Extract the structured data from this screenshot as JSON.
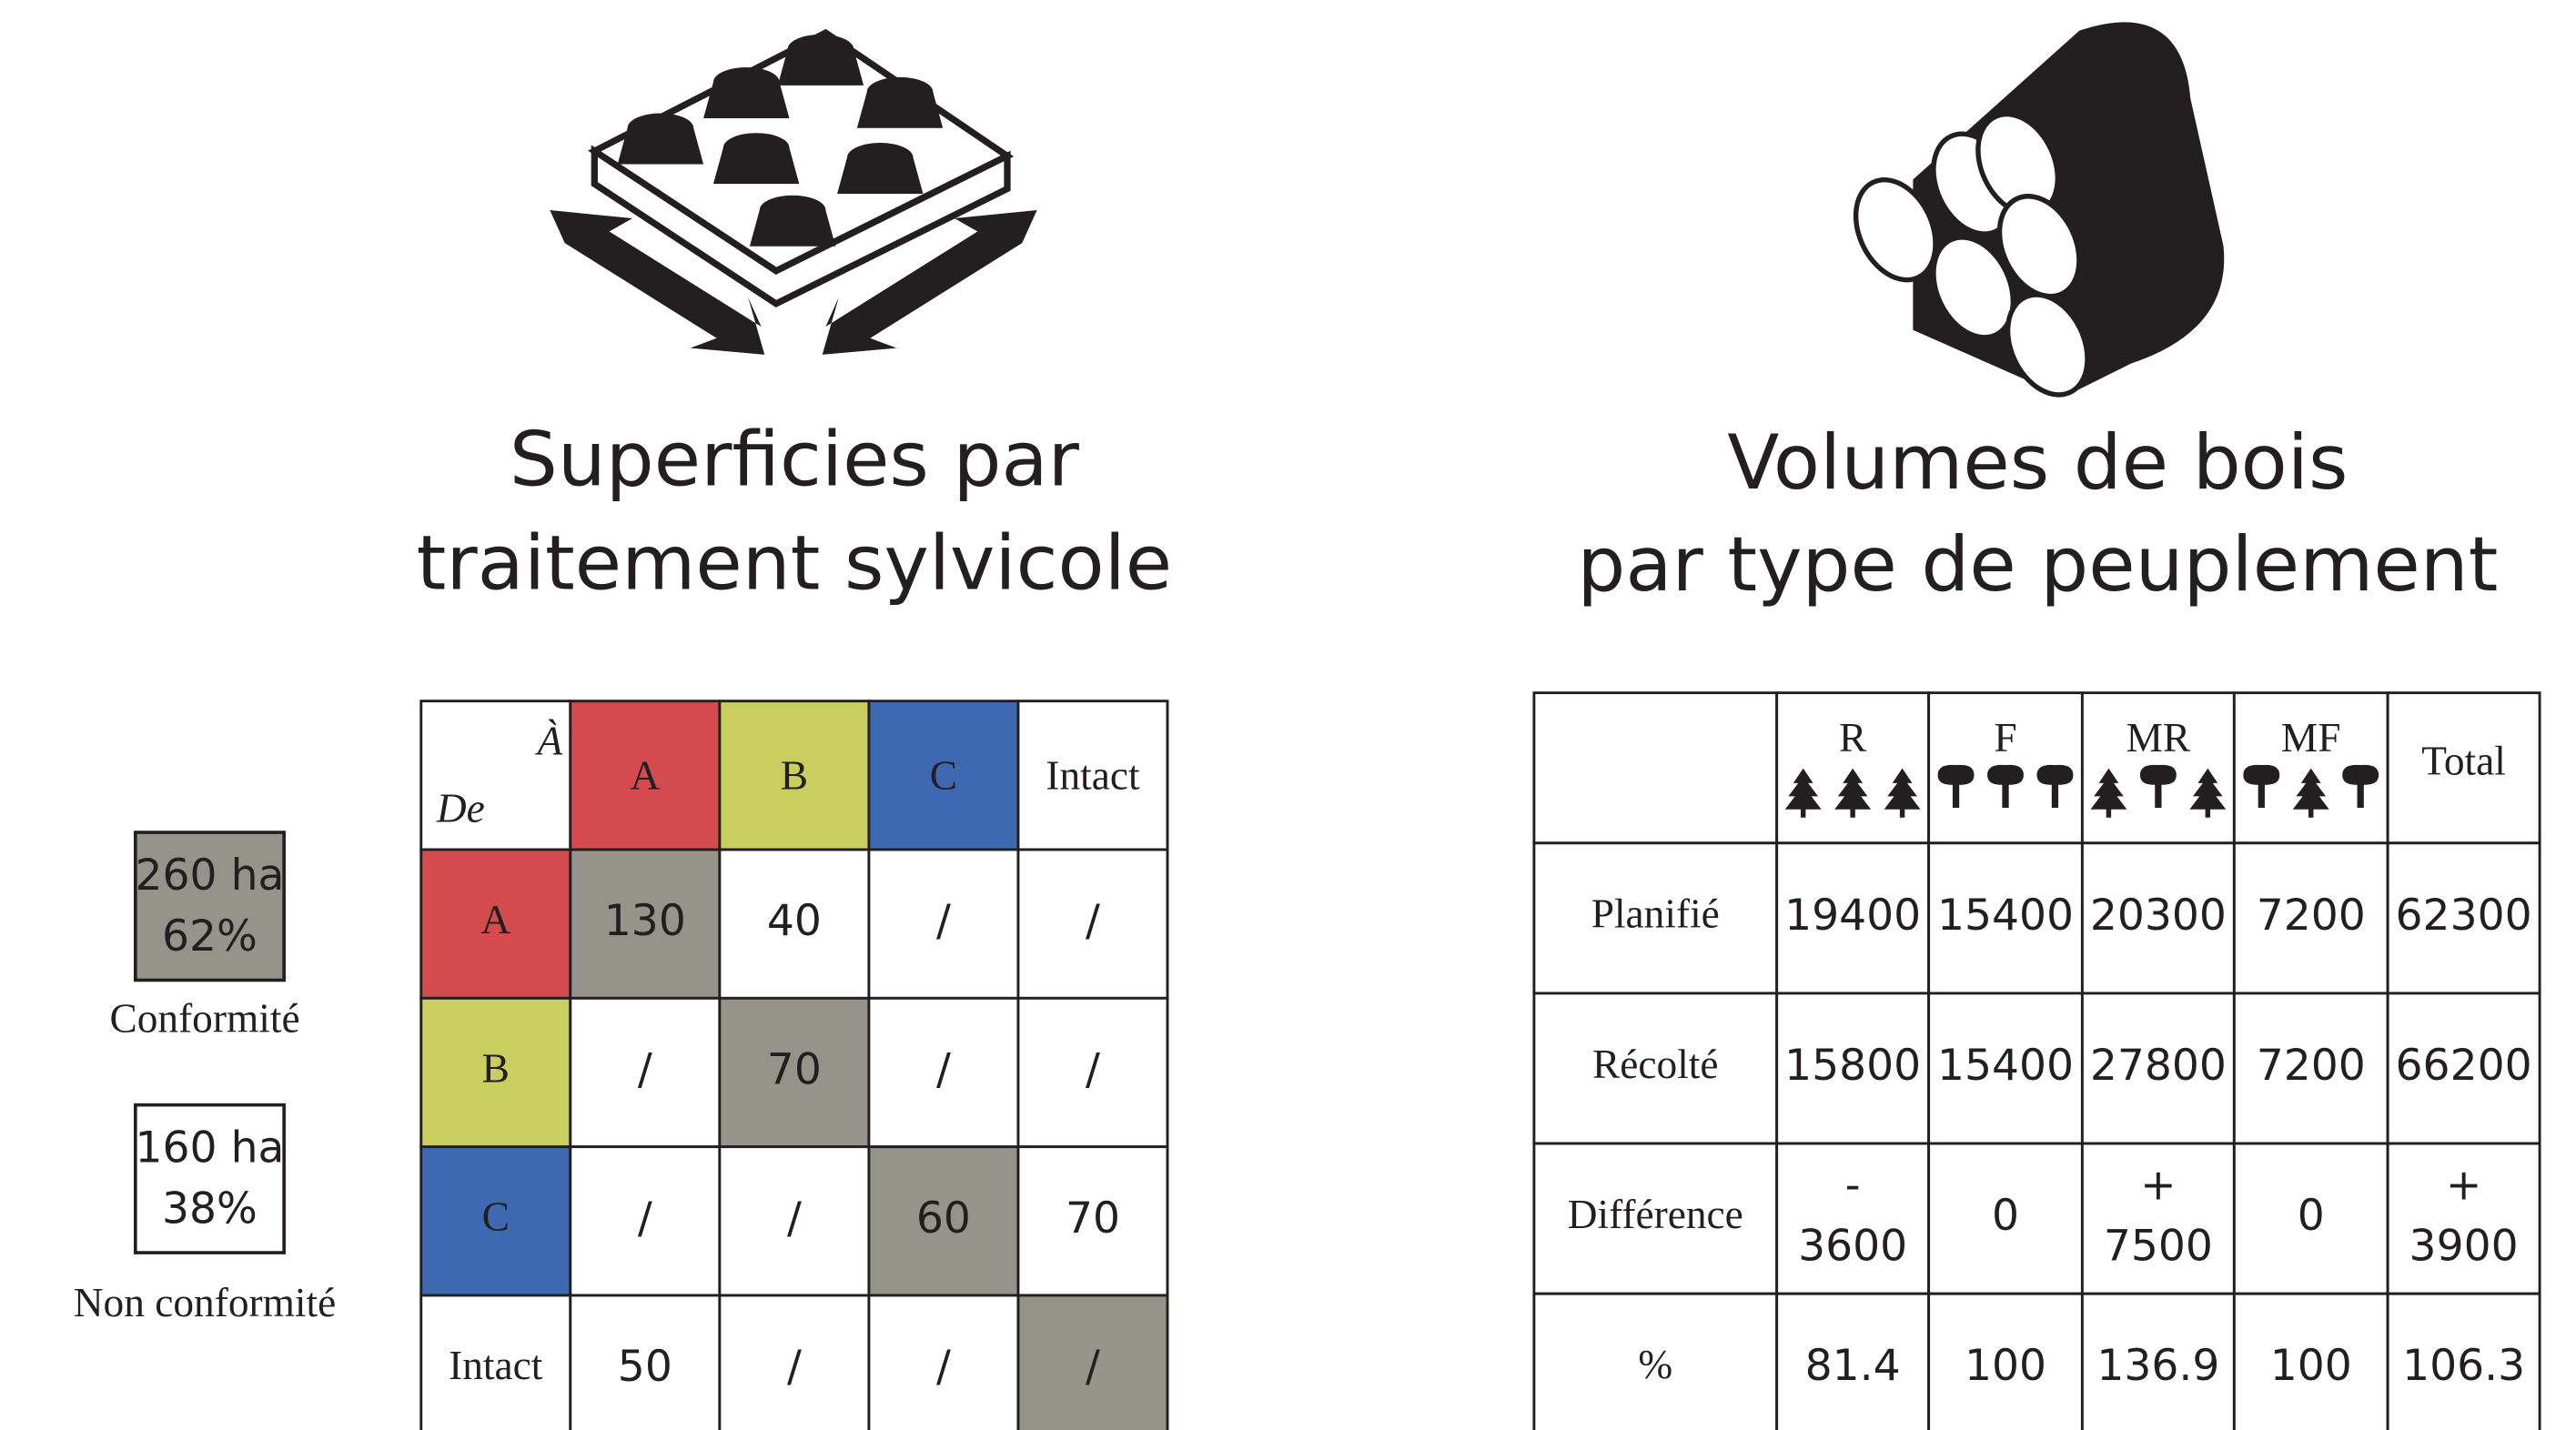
{
  "left": {
    "title": [
      "Superficies par",
      "traitement sylvicole"
    ],
    "legend": [
      {
        "area": "260 ha",
        "percent": "62%",
        "label": "Conformité"
      },
      {
        "area": "160 ha",
        "percent": "38%",
        "label": "Non conformité"
      }
    ],
    "matrix": {
      "corner_to": "À",
      "corner_from": "De",
      "columns": [
        {
          "label": "A",
          "color": "#d34b4f"
        },
        {
          "label": "B",
          "color": "#c8cf5f"
        },
        {
          "label": "C",
          "color": "#3f68b3"
        },
        {
          "label": "Intact",
          "color": "#ffffff"
        }
      ],
      "rows": [
        {
          "label": "A",
          "color": "#d34b4f",
          "cells": [
            "130",
            "40",
            "/",
            "/"
          ]
        },
        {
          "label": "B",
          "color": "#c8cf5f",
          "cells": [
            "/",
            "70",
            "/",
            "/"
          ]
        },
        {
          "label": "C",
          "color": "#3f68b3",
          "cells": [
            "/",
            "/",
            "60",
            "70"
          ]
        },
        {
          "label": "Intact",
          "color": "#ffffff",
          "cells": [
            "50",
            "/",
            "/",
            "/"
          ]
        }
      ]
    }
  },
  "right": {
    "title": [
      "Volumes de bois",
      "par type de peuplement"
    ],
    "table": {
      "columns": [
        "R",
        "F",
        "MR",
        "MF",
        "Total"
      ],
      "rows": [
        {
          "label": "Planifié",
          "cells": [
            [
              "19400"
            ],
            [
              "15400"
            ],
            [
              "20300"
            ],
            [
              "7200"
            ],
            [
              "62300"
            ]
          ]
        },
        {
          "label": "Récolté",
          "cells": [
            [
              "15800"
            ],
            [
              "15400"
            ],
            [
              "27800"
            ],
            [
              "7200"
            ],
            [
              "66200"
            ]
          ]
        },
        {
          "label": "Différence",
          "cells": [
            [
              "-",
              "3600"
            ],
            [
              "0"
            ],
            [
              "+",
              "7500"
            ],
            [
              "0"
            ],
            [
              "+",
              "3900"
            ]
          ]
        },
        {
          "label": "%",
          "cells": [
            [
              "81.4"
            ],
            [
              "100"
            ],
            [
              "136.9"
            ],
            [
              "100"
            ],
            [
              "106.3"
            ]
          ]
        }
      ]
    }
  }
}
